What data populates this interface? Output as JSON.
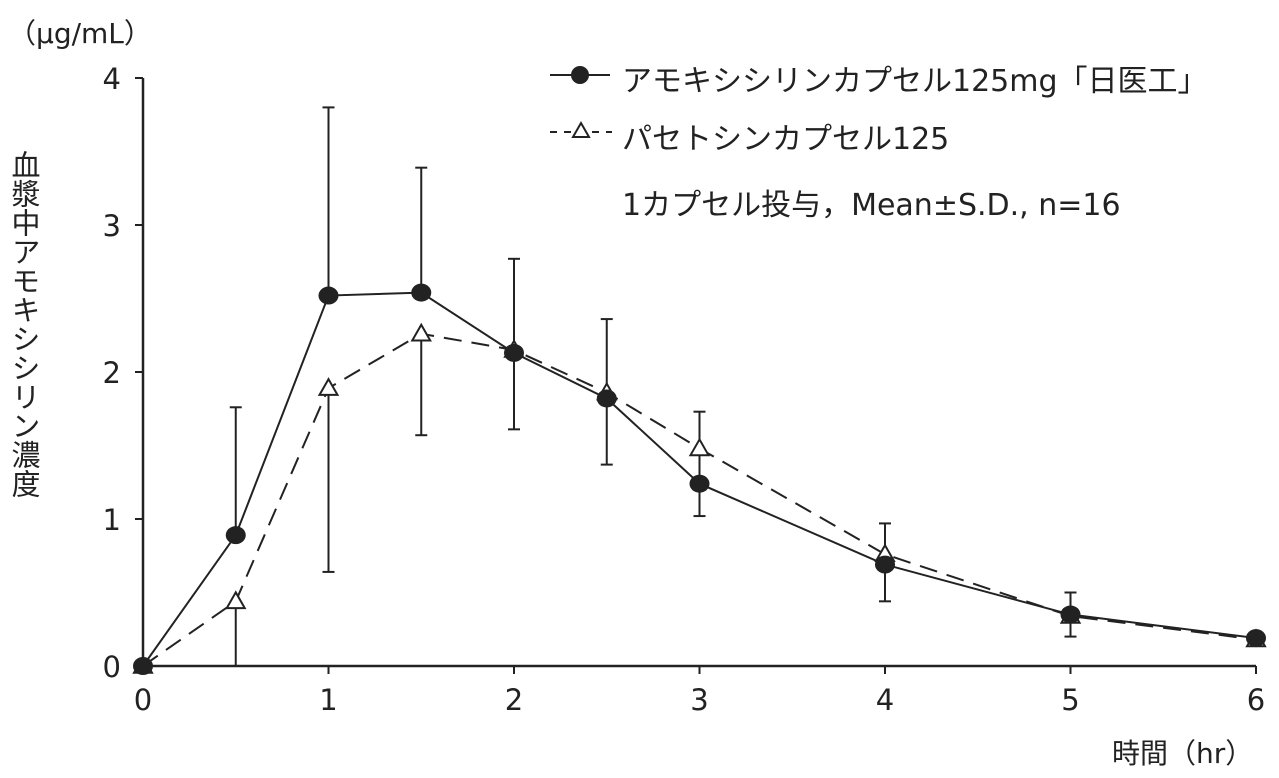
{
  "chart_data": {
    "type": "line",
    "xlabel": "時間（hr）",
    "ylabel": "血漿中アモキシシリン濃度",
    "yunit": "（μg/mL）",
    "xlim": [
      0,
      6
    ],
    "ylim": [
      0,
      4
    ],
    "xticks": [
      "0",
      "1",
      "2",
      "3",
      "4",
      "5",
      "6"
    ],
    "yticks": [
      "0",
      "1",
      "2",
      "3",
      "4"
    ],
    "grid": false,
    "legend_position": "top-right",
    "annotation": "1カプセル投与，Mean±S.D., n=16",
    "x": [
      0,
      0.5,
      1,
      1.5,
      2,
      2.5,
      3,
      4,
      5,
      6
    ],
    "series": [
      {
        "name": "アモキシシリンカプセル125mg「日医工」",
        "marker": "filled-circle",
        "line": "solid",
        "values": [
          0,
          0.89,
          2.52,
          2.54,
          2.13,
          1.82,
          1.24,
          0.69,
          0.35,
          0.19
        ],
        "sd_upper": [
          null,
          1.76,
          3.8,
          3.39,
          2.77,
          2.36,
          1.73,
          0.97,
          0.5,
          0.23
        ]
      },
      {
        "name": "パセトシンカプセル125",
        "marker": "open-triangle",
        "line": "dashed",
        "values": [
          0,
          0.44,
          1.89,
          2.26,
          2.15,
          1.86,
          1.48,
          0.76,
          0.34,
          0.18
        ],
        "sd_lower": [
          null,
          0,
          0.64,
          1.57,
          1.61,
          1.37,
          1.02,
          0.44,
          0.2,
          0.14
        ]
      }
    ]
  },
  "colors": {
    "ink": "#222222",
    "background": "#ffffff"
  }
}
